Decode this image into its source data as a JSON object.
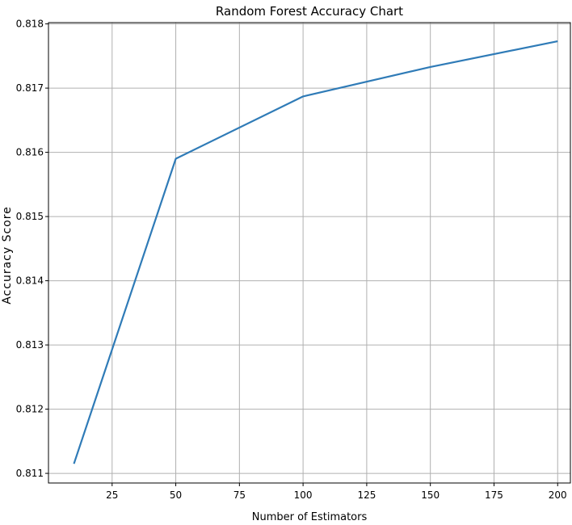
{
  "chart_data": {
    "type": "line",
    "title": "Random Forest Accuracy Chart",
    "xlabel": "Number of Estimators",
    "ylabel": "Accuracy Score",
    "x": [
      10,
      50,
      100,
      150,
      200
    ],
    "series": [
      {
        "values": [
          0.81115,
          0.8159,
          0.81687,
          0.81733,
          0.81773
        ],
        "color": "#2f7bb7"
      }
    ],
    "xlim": [
      0,
      205
    ],
    "ylim": [
      0.81085,
      0.81802
    ],
    "xticks": [
      25,
      50,
      75,
      100,
      125,
      150,
      175,
      200
    ],
    "xtick_labels": [
      "25",
      "50",
      "75",
      "100",
      "125",
      "150",
      "175",
      "200"
    ],
    "yticks": [
      0.811,
      0.812,
      0.813,
      0.814,
      0.815,
      0.816,
      0.817,
      0.818
    ],
    "ytick_labels": [
      "0.811",
      "0.812",
      "0.813",
      "0.814",
      "0.815",
      "0.816",
      "0.817",
      "0.818"
    ],
    "grid": true,
    "grid_color": "#b0b0b0",
    "axis_color": "#000000"
  }
}
